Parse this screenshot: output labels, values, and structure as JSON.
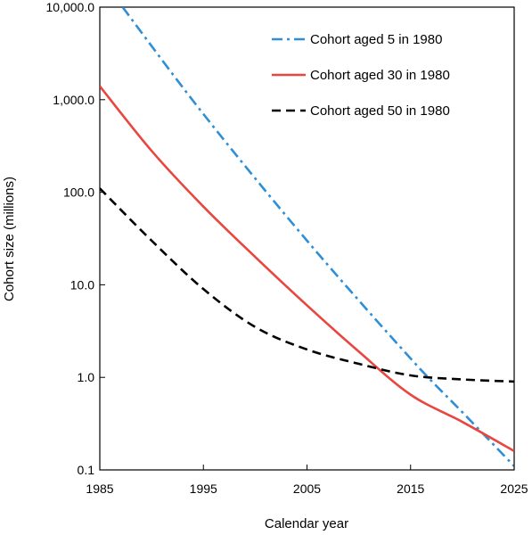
{
  "chart_data": {
    "type": "line",
    "title": "",
    "xlabel": "Calendar year",
    "ylabel": "Cohort size (millions)",
    "xlim": [
      1985,
      2025
    ],
    "ylim": [
      0.1,
      10000
    ],
    "y_scale": "log",
    "x_ticks": [
      1985,
      1995,
      2005,
      2015,
      2025
    ],
    "x_tick_labels": [
      "1985",
      "1995",
      "2005",
      "2015",
      "2025"
    ],
    "y_ticks": [
      0.1,
      1,
      10,
      100,
      1000,
      10000
    ],
    "y_tick_labels": [
      "0.1",
      "1.0",
      "10.0",
      "100.0",
      "1,000.0",
      "10,000.0"
    ],
    "grid": false,
    "legend_position": "top-right",
    "series": [
      {
        "name": "Cohort aged 5 in 1980",
        "color": "#2f8fd6",
        "dash": "dash-dot",
        "x": [
          1987.2,
          1995,
          2005,
          2015,
          2020,
          2025
        ],
        "y": [
          10000,
          700,
          30,
          1.6,
          0.42,
          0.11
        ]
      },
      {
        "name": "Cohort aged 30 in 1980",
        "color": "#e8463f",
        "dash": "solid",
        "x": [
          1985,
          1990,
          1995,
          2000,
          2005,
          2010,
          2015,
          2020,
          2025
        ],
        "y": [
          1400,
          280,
          70,
          20,
          6,
          1.9,
          0.65,
          0.33,
          0.16
        ]
      },
      {
        "name": "Cohort aged 50 in 1980",
        "color": "#000000",
        "dash": "dash",
        "x": [
          1985,
          1990,
          1995,
          2000,
          2005,
          2010,
          2015,
          2020,
          2025
        ],
        "y": [
          110,
          30,
          9,
          3.5,
          2,
          1.4,
          1.05,
          0.95,
          0.9
        ]
      }
    ]
  }
}
